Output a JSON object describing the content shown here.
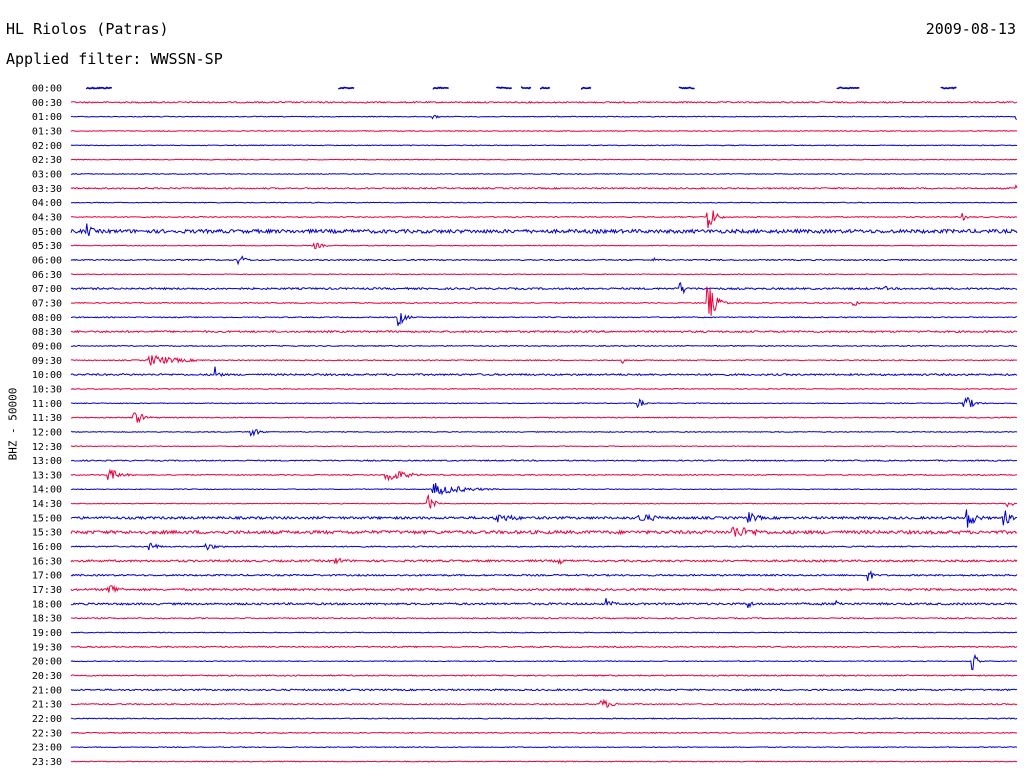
{
  "header": {
    "station": "HL Riolos (Patras)",
    "date": "2009-08-13",
    "filter_label": "Applied filter: WWSSN-SP"
  },
  "chart_data": {
    "type": "line",
    "title": "HL Riolos (Patras)",
    "date": "2009-08-13",
    "filter": "WWSSN-SP",
    "ylabel": "BHZ - 50000",
    "colors": {
      "odd_rows": "#0000cc",
      "even_rows": "#e8003a"
    },
    "row_labels": [
      "00:00",
      "00:30",
      "01:00",
      "01:30",
      "02:00",
      "02:30",
      "03:00",
      "03:30",
      "04:00",
      "04:30",
      "05:00",
      "05:30",
      "06:00",
      "06:30",
      "07:00",
      "07:30",
      "08:00",
      "08:30",
      "09:00",
      "09:30",
      "10:00",
      "10:30",
      "11:00",
      "11:30",
      "12:00",
      "12:30",
      "13:00",
      "13:30",
      "14:00",
      "14:30",
      "15:00",
      "15:30",
      "16:00",
      "16:30",
      "17:00",
      "17:30",
      "18:00",
      "18:30",
      "19:00",
      "19:30",
      "20:00",
      "20:30",
      "21:00",
      "21:30",
      "22:00",
      "22:30",
      "23:00",
      "23:30"
    ],
    "noise_level": [
      0.4,
      0.7,
      0.4,
      0.4,
      0.4,
      0.4,
      0.4,
      0.7,
      0.4,
      0.5,
      1.8,
      0.4,
      0.6,
      0.4,
      0.9,
      0.5,
      0.5,
      0.9,
      0.5,
      0.5,
      0.9,
      0.4,
      0.4,
      0.5,
      0.4,
      0.4,
      0.6,
      0.5,
      0.4,
      0.4,
      1.2,
      1.6,
      0.6,
      1.0,
      0.8,
      1.0,
      1.0,
      0.6,
      0.4,
      0.6,
      0.4,
      0.6,
      0.8,
      0.6,
      0.5,
      0.5,
      0.4,
      0.4
    ],
    "events": [
      {
        "row": 0,
        "minute": 0.5,
        "amp": 1.5,
        "dur": 0.8
      },
      {
        "row": 0,
        "minute": 8.5,
        "amp": 1.5,
        "dur": 0.5
      },
      {
        "row": 0,
        "minute": 11.5,
        "amp": 1.5,
        "dur": 0.5
      },
      {
        "row": 0,
        "minute": 13.5,
        "amp": 1.5,
        "dur": 0.5
      },
      {
        "row": 0,
        "minute": 14.3,
        "amp": 1.5,
        "dur": 0.3
      },
      {
        "row": 0,
        "minute": 14.9,
        "amp": 1.5,
        "dur": 0.3
      },
      {
        "row": 0,
        "minute": 16.2,
        "amp": 1.5,
        "dur": 0.3
      },
      {
        "row": 0,
        "minute": 19.3,
        "amp": 1.5,
        "dur": 0.5
      },
      {
        "row": 0,
        "minute": 24.3,
        "amp": 1.5,
        "dur": 0.7
      },
      {
        "row": 0,
        "minute": 27.6,
        "amp": 1.5,
        "dur": 0.5
      },
      {
        "row": 2,
        "minute": 11.5,
        "amp": 3,
        "dur": 0.4
      },
      {
        "row": 2,
        "minute": 30.0,
        "amp": 4,
        "dur": 0.2
      },
      {
        "row": 7,
        "minute": 30.0,
        "amp": 3,
        "dur": 0.3
      },
      {
        "row": 9,
        "minute": 20.2,
        "amp": 16,
        "dur": 0.6
      },
      {
        "row": 9,
        "minute": 28.3,
        "amp": 4,
        "dur": 0.4
      },
      {
        "row": 10,
        "minute": 0.5,
        "amp": 8,
        "dur": 0.6
      },
      {
        "row": 11,
        "minute": 7.7,
        "amp": 4,
        "dur": 0.8
      },
      {
        "row": 12,
        "minute": 5.3,
        "amp": 9,
        "dur": 0.5
      },
      {
        "row": 12,
        "minute": 18.5,
        "amp": 2,
        "dur": 0.6
      },
      {
        "row": 14,
        "minute": 19.3,
        "amp": 9,
        "dur": 0.5
      },
      {
        "row": 14,
        "minute": 25.8,
        "amp": 3,
        "dur": 0.4
      },
      {
        "row": 15,
        "minute": 20.2,
        "amp": 20,
        "dur": 0.7
      },
      {
        "row": 15,
        "minute": 24.8,
        "amp": 6,
        "dur": 0.4
      },
      {
        "row": 16,
        "minute": 10.4,
        "amp": 9,
        "dur": 0.6
      },
      {
        "row": 19,
        "minute": 2.5,
        "amp": 6,
        "dur": 2.5
      },
      {
        "row": 19,
        "minute": 17.5,
        "amp": 3,
        "dur": 0.3
      },
      {
        "row": 20,
        "minute": 4.6,
        "amp": 11,
        "dur": 0.3
      },
      {
        "row": 22,
        "minute": 18.0,
        "amp": 6,
        "dur": 0.4
      },
      {
        "row": 22,
        "minute": 28.3,
        "amp": 11,
        "dur": 0.7
      },
      {
        "row": 23,
        "minute": 2.0,
        "amp": 8,
        "dur": 0.8
      },
      {
        "row": 24,
        "minute": 5.7,
        "amp": 7,
        "dur": 0.6
      },
      {
        "row": 27,
        "minute": 1.2,
        "amp": 7,
        "dur": 1.0
      },
      {
        "row": 27,
        "minute": 10.0,
        "amp": 9,
        "dur": 1.5
      },
      {
        "row": 28,
        "minute": 11.5,
        "amp": 7,
        "dur": 2.5
      },
      {
        "row": 29,
        "minute": 11.3,
        "amp": 10,
        "dur": 0.6
      },
      {
        "row": 29,
        "minute": 29.7,
        "amp": 9,
        "dur": 0.3
      },
      {
        "row": 30,
        "minute": 13.5,
        "amp": 5,
        "dur": 2.0
      },
      {
        "row": 30,
        "minute": 18.0,
        "amp": 5,
        "dur": 2.0
      },
      {
        "row": 30,
        "minute": 21.5,
        "amp": 6,
        "dur": 1.0
      },
      {
        "row": 30,
        "minute": 28.4,
        "amp": 12,
        "dur": 0.8
      },
      {
        "row": 30,
        "minute": 29.6,
        "amp": 9,
        "dur": 0.6
      },
      {
        "row": 31,
        "minute": 21.0,
        "amp": 7,
        "dur": 2.5
      },
      {
        "row": 32,
        "minute": 2.5,
        "amp": 6,
        "dur": 0.6
      },
      {
        "row": 32,
        "minute": 4.3,
        "amp": 4,
        "dur": 1.0
      },
      {
        "row": 33,
        "minute": 8.4,
        "amp": 4,
        "dur": 1.0
      },
      {
        "row": 33,
        "minute": 15.5,
        "amp": 5,
        "dur": 0.3
      },
      {
        "row": 34,
        "minute": 25.3,
        "amp": 9,
        "dur": 0.3
      },
      {
        "row": 35,
        "minute": 1.2,
        "amp": 8,
        "dur": 0.8
      },
      {
        "row": 36,
        "minute": 17.0,
        "amp": 6,
        "dur": 0.5
      },
      {
        "row": 36,
        "minute": 21.5,
        "amp": 5,
        "dur": 0.4
      },
      {
        "row": 36,
        "minute": 24.3,
        "amp": 4,
        "dur": 0.6
      },
      {
        "row": 40,
        "minute": 28.6,
        "amp": 10,
        "dur": 0.4
      },
      {
        "row": 43,
        "minute": 16.8,
        "amp": 6,
        "dur": 1.0
      }
    ]
  }
}
